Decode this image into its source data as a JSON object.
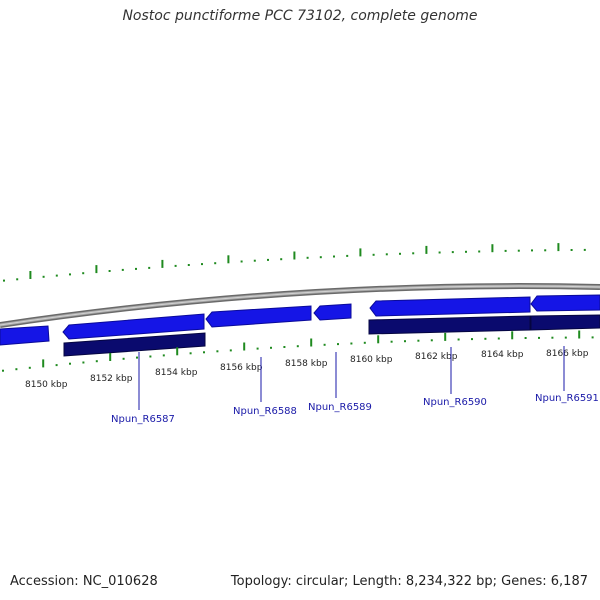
{
  "title": "Nostoc punctiforme PCC 73102, complete genome",
  "footer": {
    "accession": "Accession: NC_010628",
    "summary": "Topology: circular; Length: 8,234,322 bp; Genes: 6,187"
  },
  "colors": {
    "backbone": "#8c8c8c",
    "forward_gene": "#1515e6",
    "reverse_gene": "#0a0a6e",
    "tick": "#1f8a1f",
    "gene_label": "#1a1aa8",
    "gene_line": "#1a1aa8"
  },
  "scale": {
    "start_kbp": 8149,
    "end_kbp": 8167,
    "labels": [
      "8150 kbp",
      "8152 kbp",
      "8154 kbp",
      "8156 kbp",
      "8158 kbp",
      "8160 kbp",
      "8162 kbp",
      "8164 kbp",
      "8166 kbp"
    ]
  },
  "genes": [
    {
      "name": "Npun_R6587",
      "tag": true
    },
    {
      "name": "Npun_R6588",
      "tag": true
    },
    {
      "name": "Npun_R6589",
      "tag": true
    },
    {
      "name": "Npun_R6590",
      "tag": true
    },
    {
      "name": "Npun_R6591",
      "tag": true
    }
  ]
}
